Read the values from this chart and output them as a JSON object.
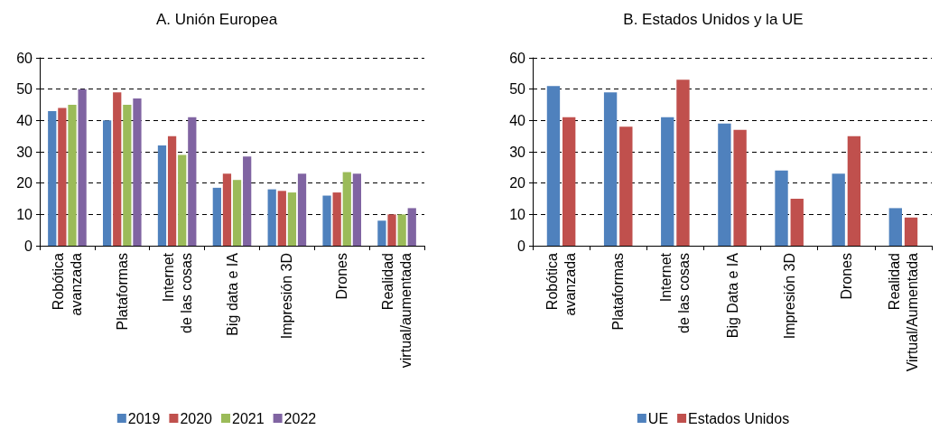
{
  "chart_data": [
    {
      "type": "bar",
      "title": "A. Unión Europea",
      "categories": [
        "Robótica\navanzada",
        "Plataformas",
        "Internet\nde las cosas",
        "Big data e IA",
        "Impresión 3D",
        "Drones",
        "Realidad\nvirtual/aumentada"
      ],
      "series": [
        {
          "name": "2019",
          "color": "#4f81bd",
          "values": [
            43,
            40,
            32,
            18.5,
            18,
            16,
            8
          ]
        },
        {
          "name": "2020",
          "color": "#c0504d",
          "values": [
            44,
            49,
            35,
            23,
            17.5,
            17,
            10
          ]
        },
        {
          "name": "2021",
          "color": "#9bbb59",
          "values": [
            45,
            45,
            29,
            21,
            17,
            23.5,
            10
          ]
        },
        {
          "name": "2022",
          "color": "#8064a2",
          "values": [
            50,
            47,
            41,
            28.5,
            23,
            23,
            12
          ]
        }
      ],
      "ylim": [
        0,
        60
      ],
      "yticks": [
        0,
        10,
        20,
        30,
        40,
        50,
        60
      ],
      "grid": "y",
      "legend": "bottom"
    },
    {
      "type": "bar",
      "title": "B. Estados Unidos y la UE",
      "categories": [
        "Robótica\navanzada",
        "Plataformas",
        "Internet\nde las cosas",
        "Big Data e IA",
        "Impresión 3D",
        "Drones",
        "Realidad\nVirtual/Aumentada"
      ],
      "series": [
        {
          "name": "UE",
          "color": "#4f81bd",
          "values": [
            51,
            49,
            41,
            39,
            24,
            23,
            12
          ]
        },
        {
          "name": "Estados Unidos",
          "color": "#c0504d",
          "values": [
            41,
            38,
            53,
            37,
            15,
            35,
            9
          ]
        }
      ],
      "ylim": [
        0,
        60
      ],
      "yticks": [
        0,
        10,
        20,
        30,
        40,
        50,
        60
      ],
      "grid": "y",
      "legend": "bottom"
    }
  ]
}
